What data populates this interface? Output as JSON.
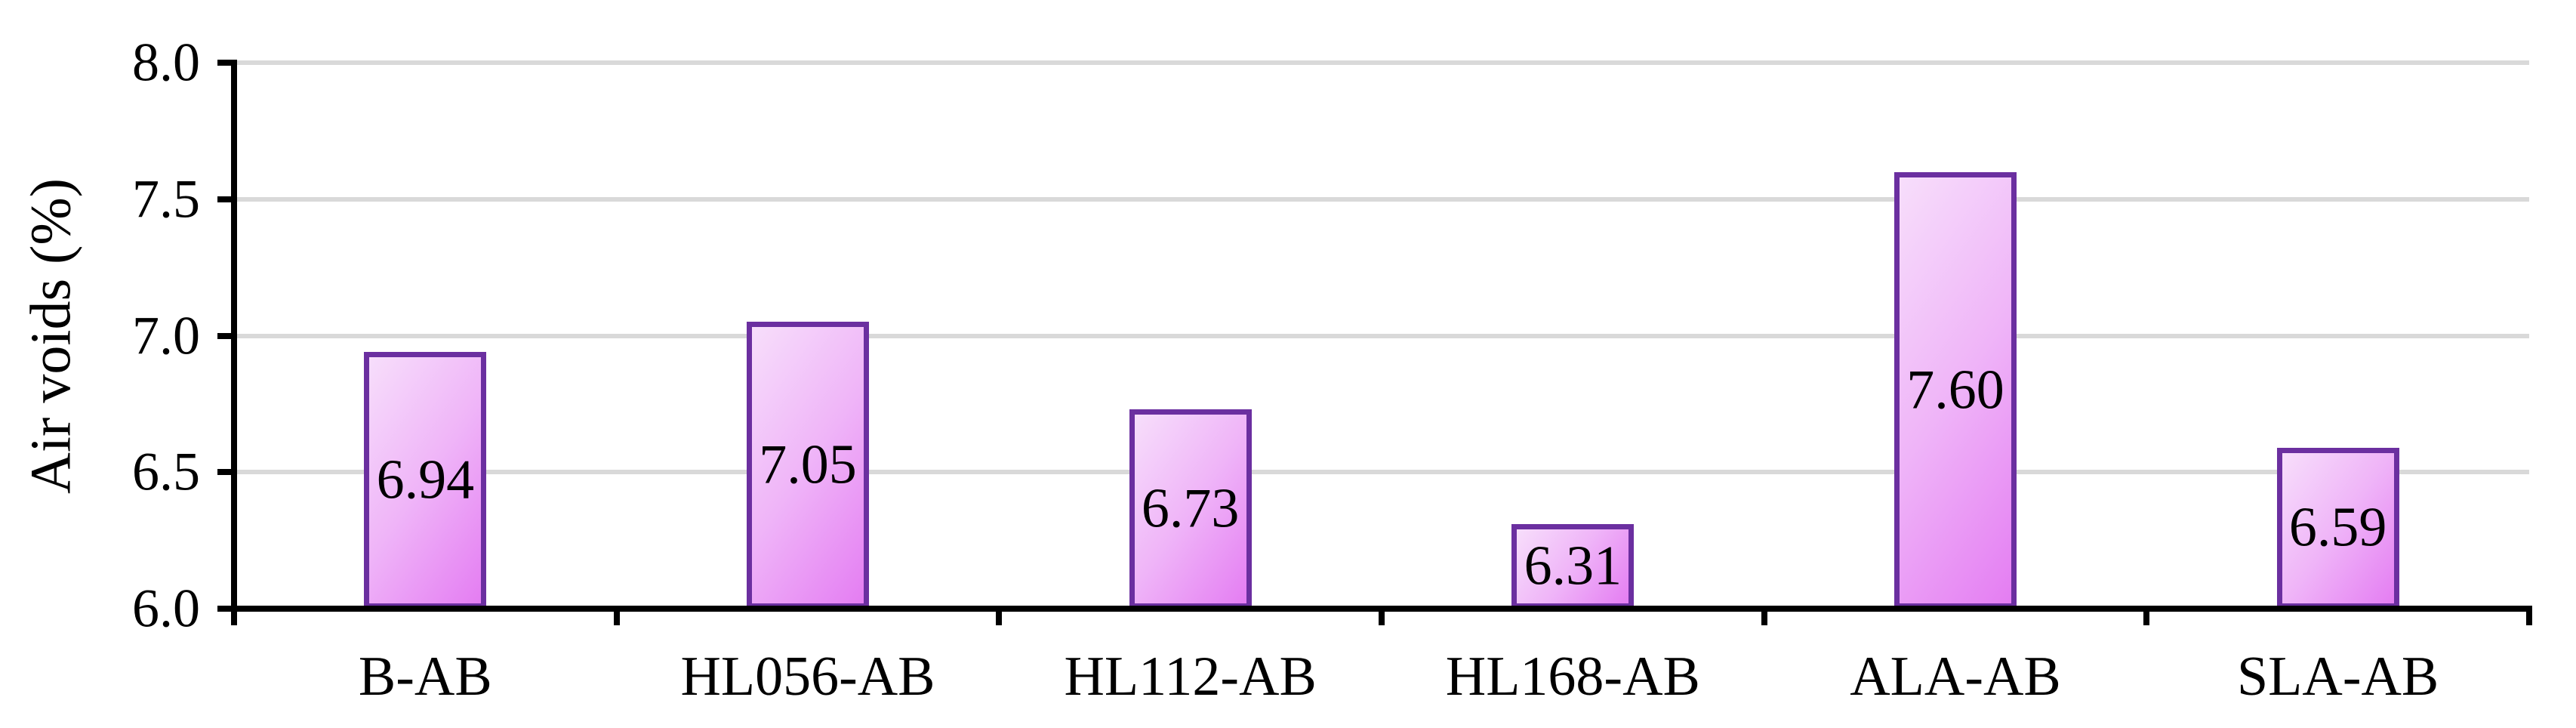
{
  "chart_data": {
    "type": "bar",
    "title": "",
    "categories": [
      "B-AB",
      "HL056-AB",
      "HL112-AB",
      "HL168-AB",
      "ALA-AB",
      "SLA-AB"
    ],
    "values": [
      6.94,
      7.05,
      6.73,
      6.31,
      7.6,
      6.59
    ],
    "data_labels": [
      "6.94",
      "7.05",
      "6.73",
      "6.31",
      "7.60",
      "6.59"
    ],
    "data_label_position": "center-inside",
    "xlabel": "",
    "ylabel": "Air voids (%)",
    "ylim": [
      6.0,
      8.0
    ],
    "ytick_step": 0.5,
    "ytick_labels": [
      "6.0",
      "6.5",
      "7.0",
      "7.5",
      "8.0"
    ],
    "grid": "horizontal-gray",
    "legend": "none"
  },
  "style": {
    "bar_fill_light": "#f7defb",
    "bar_fill_mid": "#efb4f8",
    "bar_fill_dark": "#e47df2",
    "bar_border": "#6b2fa0",
    "gridline_color": "#d9d9d9",
    "axis_color": "#000000",
    "text_color": "#000000",
    "background": "#ffffff"
  }
}
